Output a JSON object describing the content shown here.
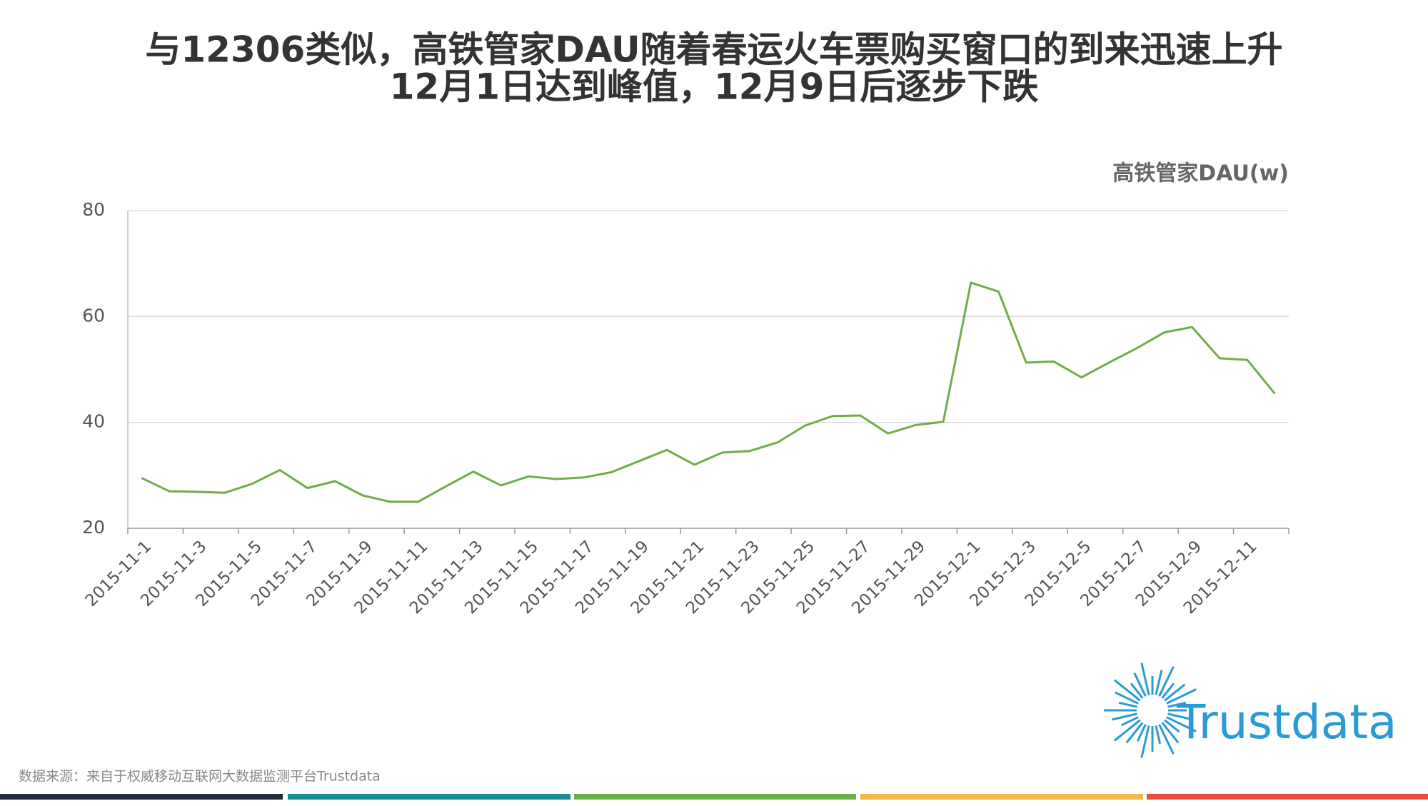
{
  "chart_data": {
    "type": "line",
    "title": "与12306类似，高铁管家DAU随着春运火车票购买窗口的到来迅速上升",
    "subtitle": "12月1日达到峰值，12月9日后逐步下跌",
    "categories": [
      "2015-11-1",
      null,
      "2015-11-3",
      null,
      "2015-11-5",
      null,
      "2015-11-7",
      null,
      "2015-11-9",
      null,
      "2015-11-11",
      null,
      "2015-11-13",
      null,
      "2015-11-15",
      null,
      "2015-11-17",
      null,
      "2015-11-19",
      null,
      "2015-11-21",
      null,
      "2015-11-23",
      null,
      "2015-11-25",
      null,
      "2015-11-27",
      null,
      "2015-11-29",
      null,
      "2015-12-1",
      null,
      "2015-12-3",
      null,
      "2015-12-5",
      null,
      "2015-12-7",
      null,
      "2015-12-9",
      null,
      "2015-12-11",
      null
    ],
    "series": [
      {
        "name": "高铁管家DAU(w)",
        "color": "#70ad47",
        "values": [
          29.5,
          27.0,
          26.9,
          26.7,
          28.4,
          31.0,
          27.6,
          28.9,
          26.2,
          25.0,
          25.0,
          27.9,
          30.7,
          28.1,
          29.8,
          29.3,
          29.6,
          30.6,
          32.7,
          34.8,
          32.0,
          34.3,
          34.6,
          36.2,
          39.4,
          41.2,
          41.3,
          37.9,
          39.5,
          40.1,
          66.4,
          64.7,
          51.3,
          51.5,
          48.5,
          51.3,
          54.0,
          57.0,
          58.0,
          52.1,
          51.8,
          45.4
        ]
      }
    ],
    "ylim": [
      20,
      80
    ],
    "yticks": [
      20,
      40,
      60,
      80
    ],
    "grid": true,
    "source": "数据来源：来自于权威移动互联网大数据监测平台Trustdata",
    "logo_text": "Trustdata"
  }
}
